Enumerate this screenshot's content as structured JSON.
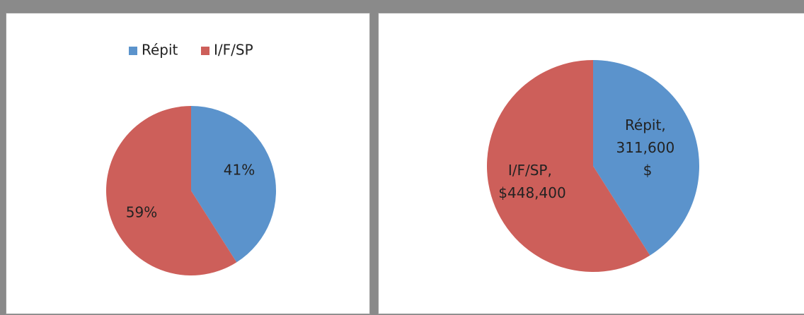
{
  "chart_data": [
    {
      "type": "pie",
      "categories": [
        "Répit",
        "I/F/SP"
      ],
      "values": [
        41,
        59
      ],
      "value_labels": [
        "41%",
        "59%"
      ],
      "colors": [
        "#5b93cc",
        "#cd5f5a"
      ],
      "legend": "top"
    },
    {
      "type": "pie",
      "values": [
        311600,
        448400
      ],
      "value_labels": [
        "Répit, 311,600 $",
        "I/F/SP, $448,400"
      ],
      "colors": [
        "#5b93cc",
        "#cd5f5a"
      ]
    }
  ]
}
